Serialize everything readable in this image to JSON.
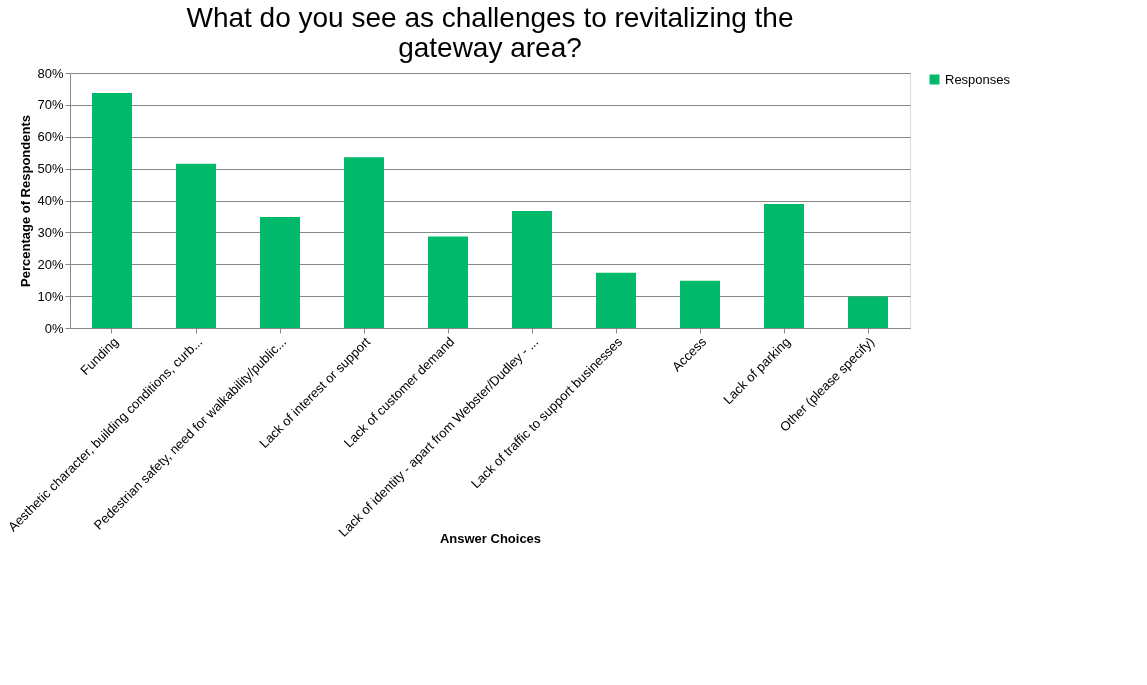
{
  "chart_data": {
    "type": "bar",
    "title": "What do you see as challenges to revitalizing the gateway area?",
    "xlabel": "Answer Choices",
    "ylabel": "Percentage of Respondents",
    "categories": [
      "Funding",
      "Aesthetic character, building conditions, curb...",
      "Pedestrian safety, need for walkability/public...",
      "Lack of interest or support",
      "Lack of customer demand",
      "Lack of identity - apart from Webster/Dudley - ...",
      "Lack of traffic to support businesses",
      "Access",
      "Lack of parking",
      "Other (please specify)"
    ],
    "series": [
      {
        "name": "Responses",
        "color": "#00b96b",
        "values": [
          73.7,
          51.5,
          34.8,
          53.6,
          28.7,
          36.7,
          17.3,
          14.8,
          38.9,
          9.9
        ]
      }
    ],
    "ylim": [
      0,
      80
    ],
    "yticks": [
      {
        "value": 0,
        "label": "0%"
      },
      {
        "value": 10,
        "label": "10%"
      },
      {
        "value": 20,
        "label": "20%"
      },
      {
        "value": 30,
        "label": "30%"
      },
      {
        "value": 40,
        "label": "40%"
      },
      {
        "value": 50,
        "label": "50%"
      },
      {
        "value": 60,
        "label": "60%"
      },
      {
        "value": 70,
        "label": "70%"
      },
      {
        "value": 80,
        "label": "80%"
      }
    ],
    "grid": "y",
    "legend": "right"
  }
}
